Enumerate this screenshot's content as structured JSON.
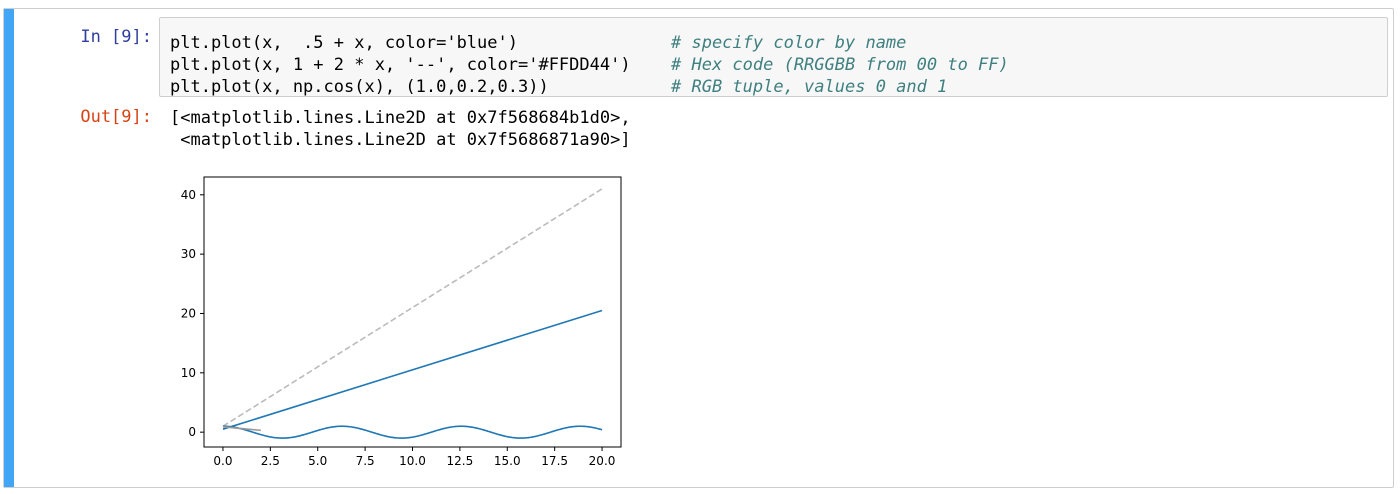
{
  "cell": {
    "in_prompt": "In [9]:",
    "out_prompt": "Out[9]:",
    "code": [
      {
        "code": "plt.plot(x,  .5 + x, color='blue')",
        "comment": "# specify color by name"
      },
      {
        "code": "plt.plot(x, 1 + 2 * x, '--', color='#FFDD44')",
        "comment": "# Hex code (RRGGBB from 00 to FF)"
      },
      {
        "code": "plt.plot(x, np.cos(x), (1.0,0.2,0.3))",
        "comment": "# RGB tuple, values 0 and 1"
      }
    ],
    "output": [
      "[<matplotlib.lines.Line2D at 0x7f568684b1d0>,",
      " <matplotlib.lines.Line2D at 0x7f5686871a90>]"
    ]
  },
  "chart_data": {
    "type": "line",
    "xlim": [
      -1,
      21
    ],
    "ylim": [
      -2.5,
      43
    ],
    "xticks": [
      "0.0",
      "2.5",
      "5.0",
      "7.5",
      "10.0",
      "12.5",
      "15.0",
      "17.5",
      "20.0"
    ],
    "yticks": [
      "0",
      "10",
      "20",
      "30",
      "40"
    ],
    "series": [
      {
        "color": "#1f77b4",
        "style": "solid",
        "x": [
          0,
          20
        ],
        "y": [
          0.5,
          20.5
        ]
      },
      {
        "color": "#bbbbbb",
        "style": "dashed",
        "x": [
          0,
          20
        ],
        "y": [
          1,
          41
        ]
      },
      {
        "color": "#1f77b4",
        "style": "solid",
        "function": "cos",
        "x_range": [
          0,
          20
        ]
      },
      {
        "color": "#999999",
        "style": "solid",
        "x": [
          0,
          2
        ],
        "y": [
          0.9,
          0.3
        ]
      }
    ]
  }
}
